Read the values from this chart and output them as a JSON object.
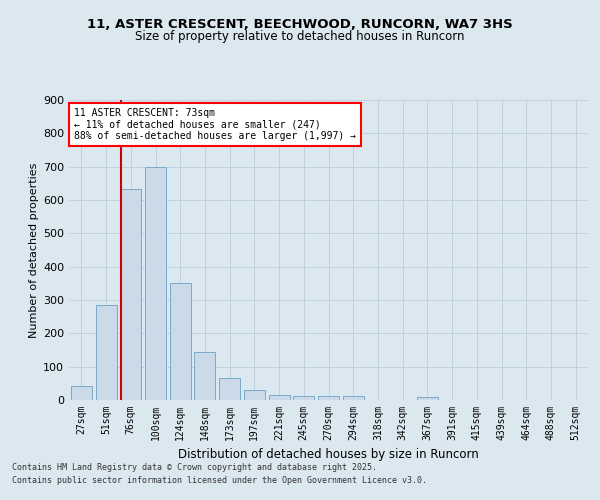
{
  "title_line1": "11, ASTER CRESCENT, BEECHWOOD, RUNCORN, WA7 3HS",
  "title_line2": "Size of property relative to detached houses in Runcorn",
  "xlabel": "Distribution of detached houses by size in Runcorn",
  "ylabel": "Number of detached properties",
  "categories": [
    "27sqm",
    "51sqm",
    "76sqm",
    "100sqm",
    "124sqm",
    "148sqm",
    "173sqm",
    "197sqm",
    "221sqm",
    "245sqm",
    "270sqm",
    "294sqm",
    "318sqm",
    "342sqm",
    "367sqm",
    "391sqm",
    "415sqm",
    "439sqm",
    "464sqm",
    "488sqm",
    "512sqm"
  ],
  "values": [
    43,
    285,
    632,
    700,
    350,
    145,
    65,
    30,
    15,
    12,
    12,
    12,
    0,
    0,
    8,
    0,
    0,
    0,
    0,
    0,
    0
  ],
  "bar_color": "#ccd9e8",
  "bar_edge_color": "#7aaac8",
  "grid_color": "#bbccdd",
  "vline_color": "#cc0000",
  "vline_x_index": 1.62,
  "annotation_text": "11 ASTER CRESCENT: 73sqm\n← 11% of detached houses are smaller (247)\n88% of semi-detached houses are larger (1,997) →",
  "ylim": [
    0,
    900
  ],
  "yticks": [
    0,
    100,
    200,
    300,
    400,
    500,
    600,
    700,
    800,
    900
  ],
  "footer_line1": "Contains HM Land Registry data © Crown copyright and database right 2025.",
  "footer_line2": "Contains public sector information licensed under the Open Government Licence v3.0.",
  "bg_color": "#dce8f0",
  "plot_bg_color": "#dce8f0"
}
